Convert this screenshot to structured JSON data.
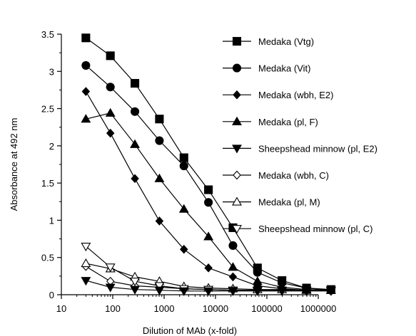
{
  "chart_data": {
    "type": "line",
    "xlabel": "Dilution of MAb (x-fold)",
    "ylabel": "Absorbance at  492 nm",
    "x_scale": "log",
    "xlim": [
      10,
      1000000
    ],
    "ylim": [
      0,
      3.5
    ],
    "x_ticks": [
      10,
      100,
      1000,
      10000,
      100000,
      1000000
    ],
    "x_tick_labels": [
      "10",
      "100",
      "1000",
      "10000",
      "100000",
      "1000000"
    ],
    "y_ticks": [
      0,
      0.5,
      1,
      1.5,
      2,
      2.5,
      3,
      3.5
    ],
    "y_tick_labels": [
      "0",
      "0.5",
      "1",
      "1.5",
      "2",
      "2.5",
      "3",
      "3.5"
    ],
    "grid": false,
    "legend_position": "right",
    "x": [
      30,
      90,
      270,
      810,
      2430,
      7290,
      21870,
      65610,
      196830,
      590490,
      1771470
    ],
    "series": [
      {
        "name": "Medaka (Vtg)",
        "marker": "square",
        "filled": true,
        "values": [
          3.45,
          3.21,
          2.84,
          2.36,
          1.84,
          1.41,
          0.9,
          0.36,
          0.19,
          0.09,
          0.07
        ]
      },
      {
        "name": "Medaka (Vit)",
        "marker": "circle",
        "filled": true,
        "values": [
          3.08,
          2.79,
          2.46,
          2.07,
          1.73,
          1.24,
          0.66,
          0.3,
          0.16,
          0.09,
          0.06
        ]
      },
      {
        "name": "Medaka (wbh, E2)",
        "marker": "diamond",
        "filled": true,
        "values": [
          2.73,
          2.17,
          1.56,
          0.99,
          0.61,
          0.36,
          0.24,
          0.12,
          0.08,
          0.06,
          0.06
        ]
      },
      {
        "name": "Medaka (pl, F)",
        "marker": "triangle-up",
        "filled": true,
        "values": [
          2.36,
          2.44,
          2.02,
          1.56,
          1.15,
          0.78,
          0.37,
          0.18,
          0.1,
          0.07,
          0.06
        ]
      },
      {
        "name": "Sheepshead minnow (pl, E2)",
        "marker": "triangle-down",
        "filled": true,
        "values": [
          0.19,
          0.1,
          0.07,
          0.06,
          0.05,
          0.05,
          0.05,
          0.05,
          0.05,
          0.05,
          0.05
        ]
      },
      {
        "name": "Medaka (wbh, C)",
        "marker": "diamond",
        "filled": false,
        "values": [
          0.38,
          0.18,
          0.12,
          0.1,
          0.08,
          0.07,
          0.06,
          0.06,
          0.06,
          0.06,
          0.06
        ]
      },
      {
        "name": "Medaka (pl, M)",
        "marker": "triangle-up",
        "filled": false,
        "values": [
          0.42,
          0.35,
          0.24,
          0.18,
          0.11,
          0.09,
          0.08,
          0.07,
          0.07,
          0.06,
          0.06
        ]
      },
      {
        "name": "Sheepshead minnow (pl, C)",
        "marker": "triangle-down",
        "filled": false,
        "values": [
          0.65,
          0.37,
          0.18,
          0.12,
          0.08,
          0.07,
          0.06,
          0.06,
          0.06,
          0.06,
          0.06
        ]
      }
    ]
  }
}
